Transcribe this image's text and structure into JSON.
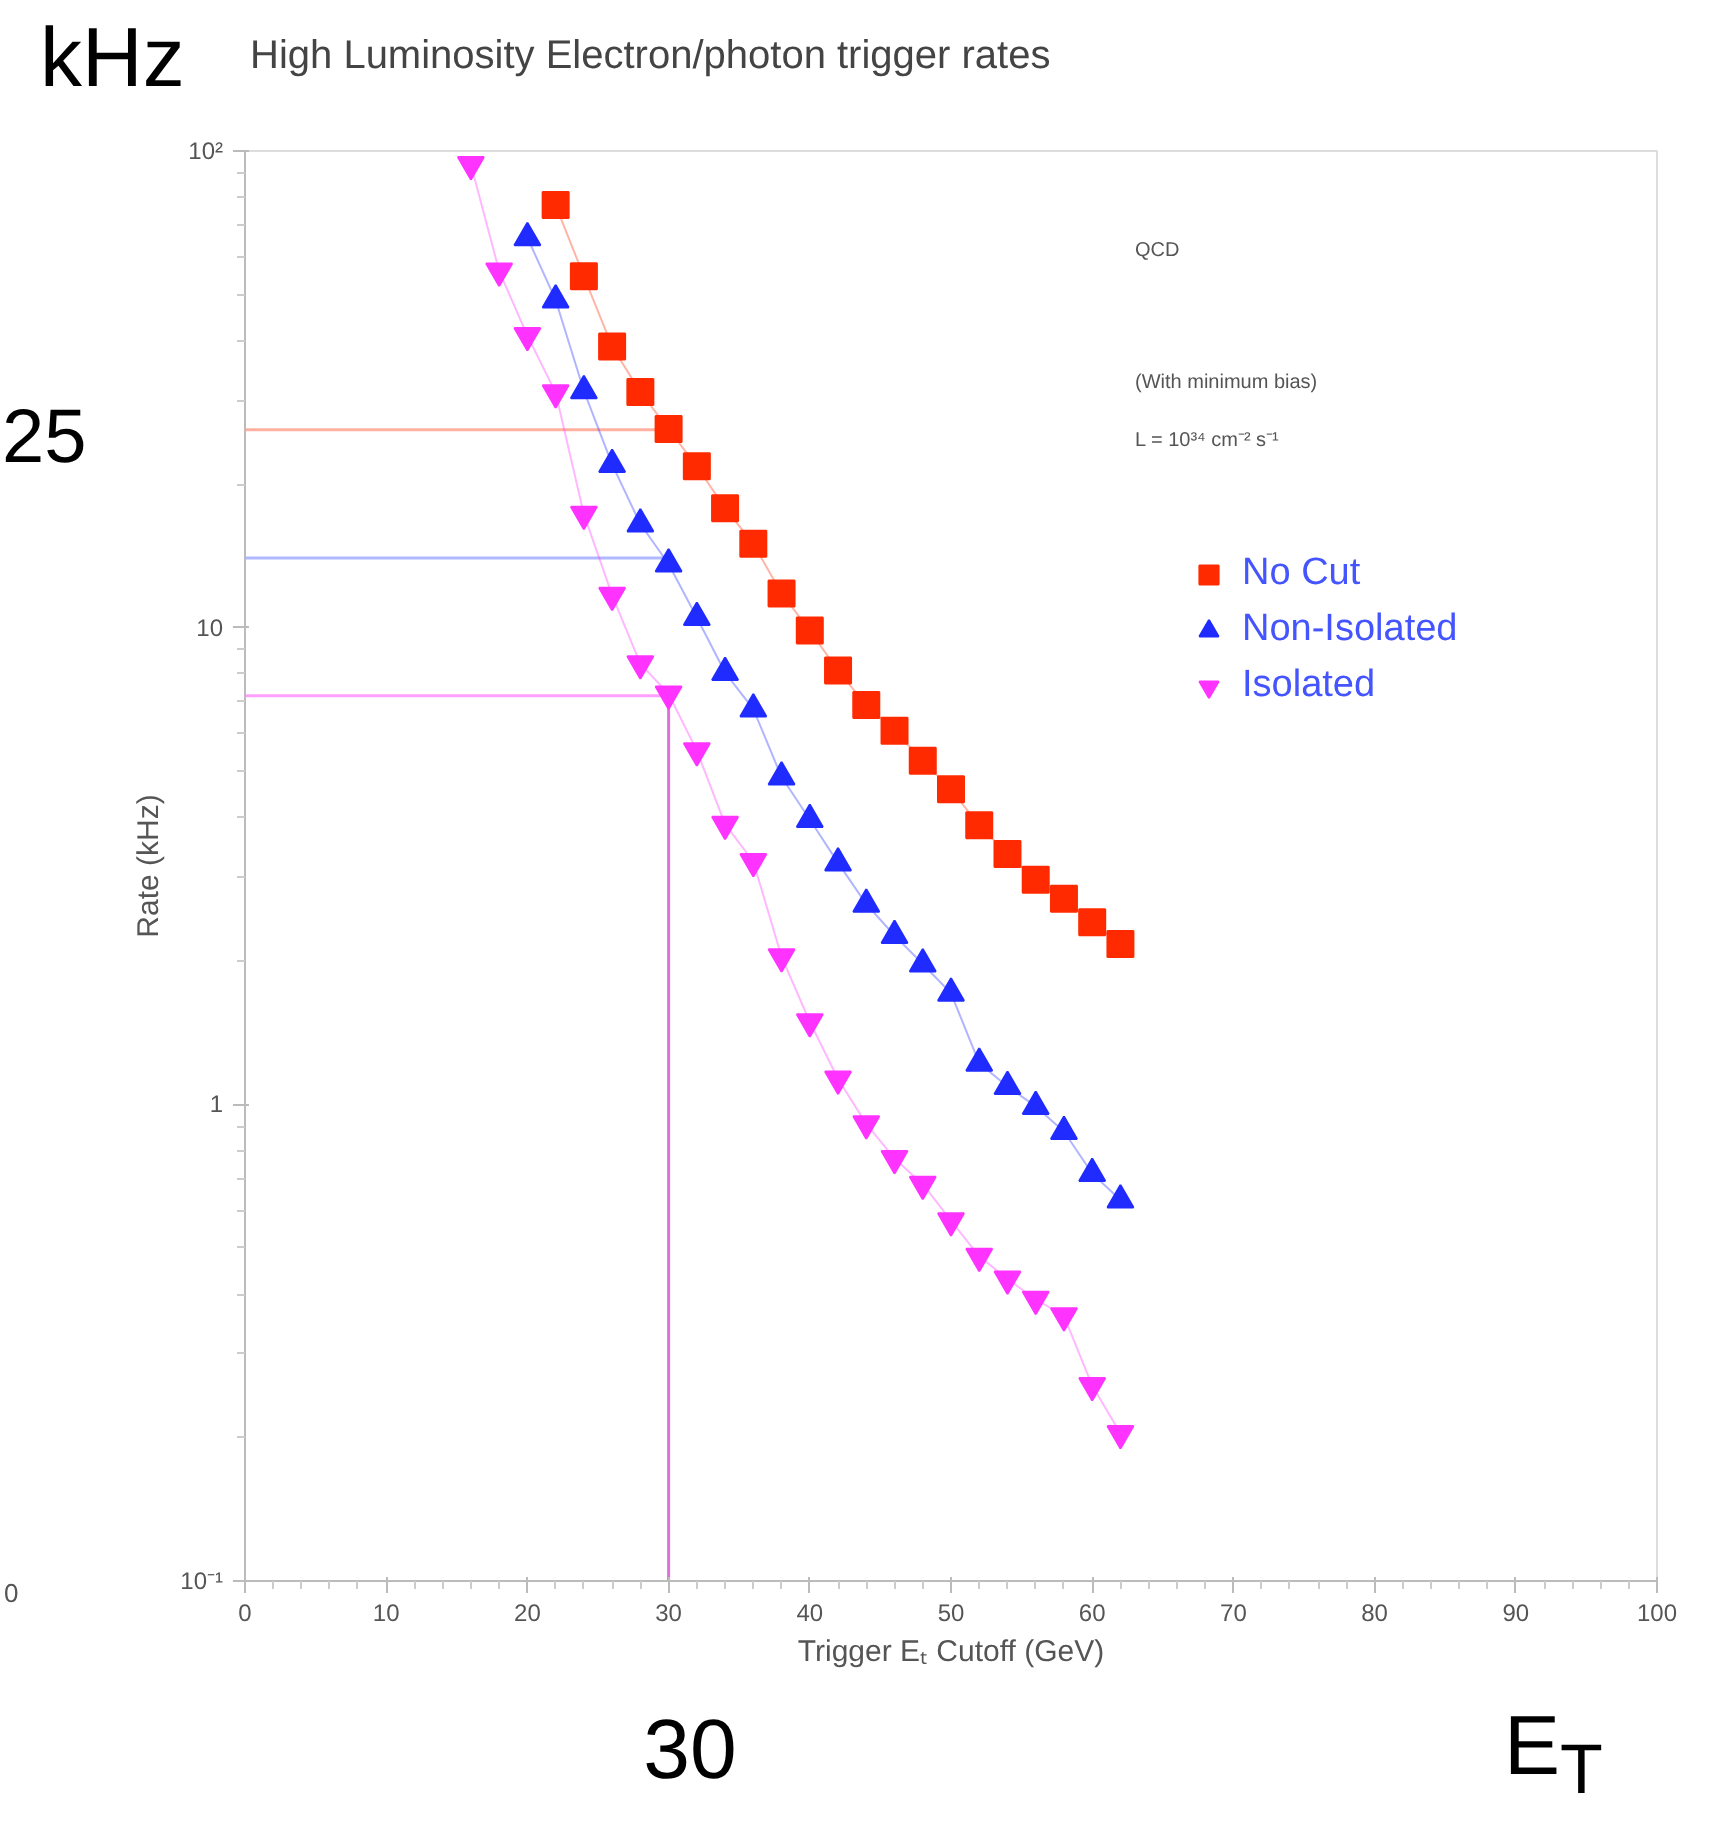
{
  "chart_data": {
    "type": "line",
    "title": "High Luminosity Electron/photon trigger rates",
    "xlabel": "Trigger Eₜ Cutoff (GeV)",
    "ylabel": "Rate (kHz)",
    "log": "y",
    "xlim": [
      0,
      100
    ],
    "ylim": [
      0.1,
      100
    ],
    "xticks": [
      0,
      10,
      20,
      30,
      40,
      50,
      60,
      70,
      80,
      90,
      100
    ],
    "yticks": [
      {
        "value": 0.1,
        "label": "10⁻¹"
      },
      1,
      10,
      {
        "value": 100,
        "label": "10²"
      }
    ],
    "grid": false,
    "legend": "top right",
    "series": [
      {
        "name": "No Cut",
        "color": "#ff2a00",
        "marker": "square",
        "x": [
          22,
          24,
          26,
          28,
          30,
          32,
          34,
          36,
          38,
          40,
          42,
          44,
          46,
          48,
          50,
          52,
          54,
          56,
          58,
          60,
          62
        ],
        "values": [
          77,
          54.6,
          38.9,
          31.2,
          26.1,
          21.8,
          17.8,
          15.0,
          11.8,
          9.86,
          8.13,
          6.88,
          6.08,
          5.26,
          4.58,
          3.85,
          3.35,
          2.96,
          2.7,
          2.41,
          2.17
        ]
      },
      {
        "name": "Non-Isolated",
        "color": "#1f2bff",
        "marker": "triangle",
        "x": [
          20,
          22,
          24,
          26,
          28,
          30,
          32,
          34,
          36,
          38,
          40,
          42,
          44,
          46,
          48,
          50,
          52,
          54,
          56,
          58,
          60,
          62
        ],
        "values": [
          65.8,
          48.7,
          31.4,
          22.0,
          16.5,
          13.6,
          10.5,
          8.05,
          6.75,
          4.86,
          3.96,
          3.21,
          2.63,
          2.26,
          1.97,
          1.71,
          1.22,
          1.09,
          0.99,
          0.877,
          0.716,
          0.63
        ]
      },
      {
        "name": "Isolated",
        "color": "#ff33ff",
        "marker": "triangle",
        "x": [
          16,
          18,
          20,
          22,
          24,
          26,
          28,
          30,
          32,
          34,
          36,
          38,
          40,
          42,
          44,
          46,
          48,
          50,
          52,
          54,
          56,
          58,
          60,
          62
        ],
        "values": [
          93.7,
          56.0,
          41.0,
          31.1,
          17.3,
          11.7,
          8.4,
          7.26,
          5.52,
          3.87,
          3.23,
          2.04,
          1.49,
          1.13,
          0.91,
          0.77,
          0.68,
          0.57,
          0.48,
          0.43,
          0.39,
          0.36,
          0.257,
          0.204
        ]
      }
    ],
    "ref_lines": [
      {
        "axis": "y",
        "value": 26,
        "color": "#ffb0a0"
      },
      {
        "axis": "y",
        "value": 14,
        "color": "#b0b8ff"
      },
      {
        "axis": "y",
        "value": 7.2,
        "color": "#ffa0ff"
      },
      {
        "axis": "x",
        "value": 30,
        "color": "#e070e0"
      }
    ],
    "annotations": [
      "QCD",
      "(With minimum bias)",
      "L = 10³⁴ cm⁻² s⁻¹",
      "kHz",
      "E$_{T}$",
      "0",
      "25",
      "30"
    ]
  }
}
